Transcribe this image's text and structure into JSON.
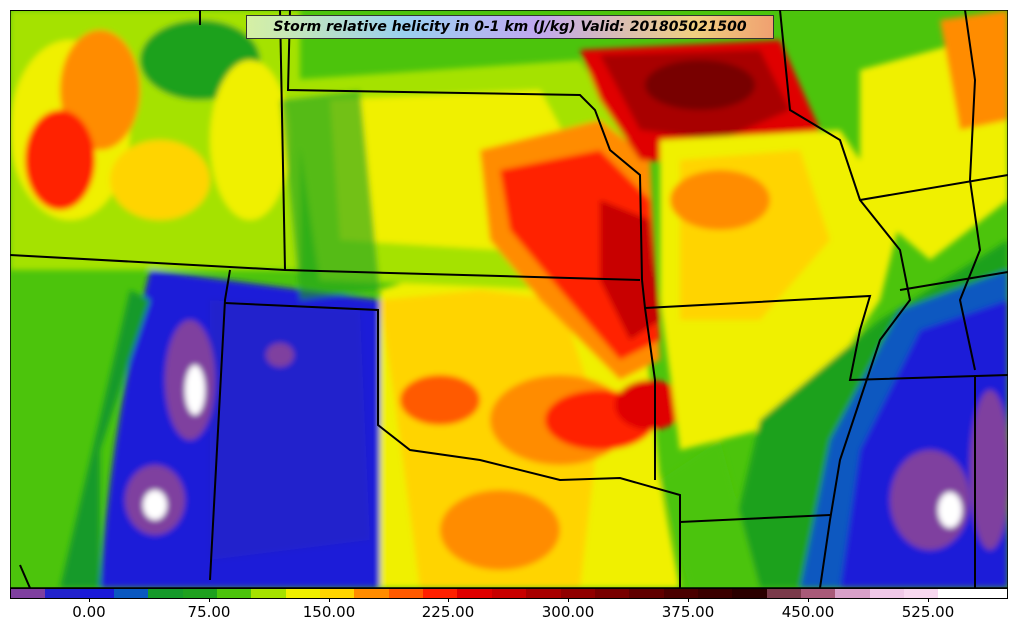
{
  "title": "Storm relative helicity in 0-1 km (J/kg) Valid: 201805021500",
  "colorbar": {
    "colors": [
      "#7f3f9f",
      "#2222cc",
      "#1a1ad8",
      "#0a58c0",
      "#159a2a",
      "#1ea11e",
      "#4cc40c",
      "#a5e200",
      "#f0f000",
      "#ffd400",
      "#ff8c00",
      "#ff5a00",
      "#ff2000",
      "#e00000",
      "#c80000",
      "#a80000",
      "#900000",
      "#780000",
      "#600000",
      "#4a0000",
      "#3a0000",
      "#2a0000",
      "#7a3a4a",
      "#a85a78",
      "#d8a0c8",
      "#f0c8e8",
      "#f8d8f0",
      "#ffffff",
      "#ffffff"
    ],
    "tick_labels": [
      "0.00",
      "75.00",
      "150.00",
      "225.00",
      "300.00",
      "375.00",
      "450.00",
      "525.00"
    ]
  }
}
